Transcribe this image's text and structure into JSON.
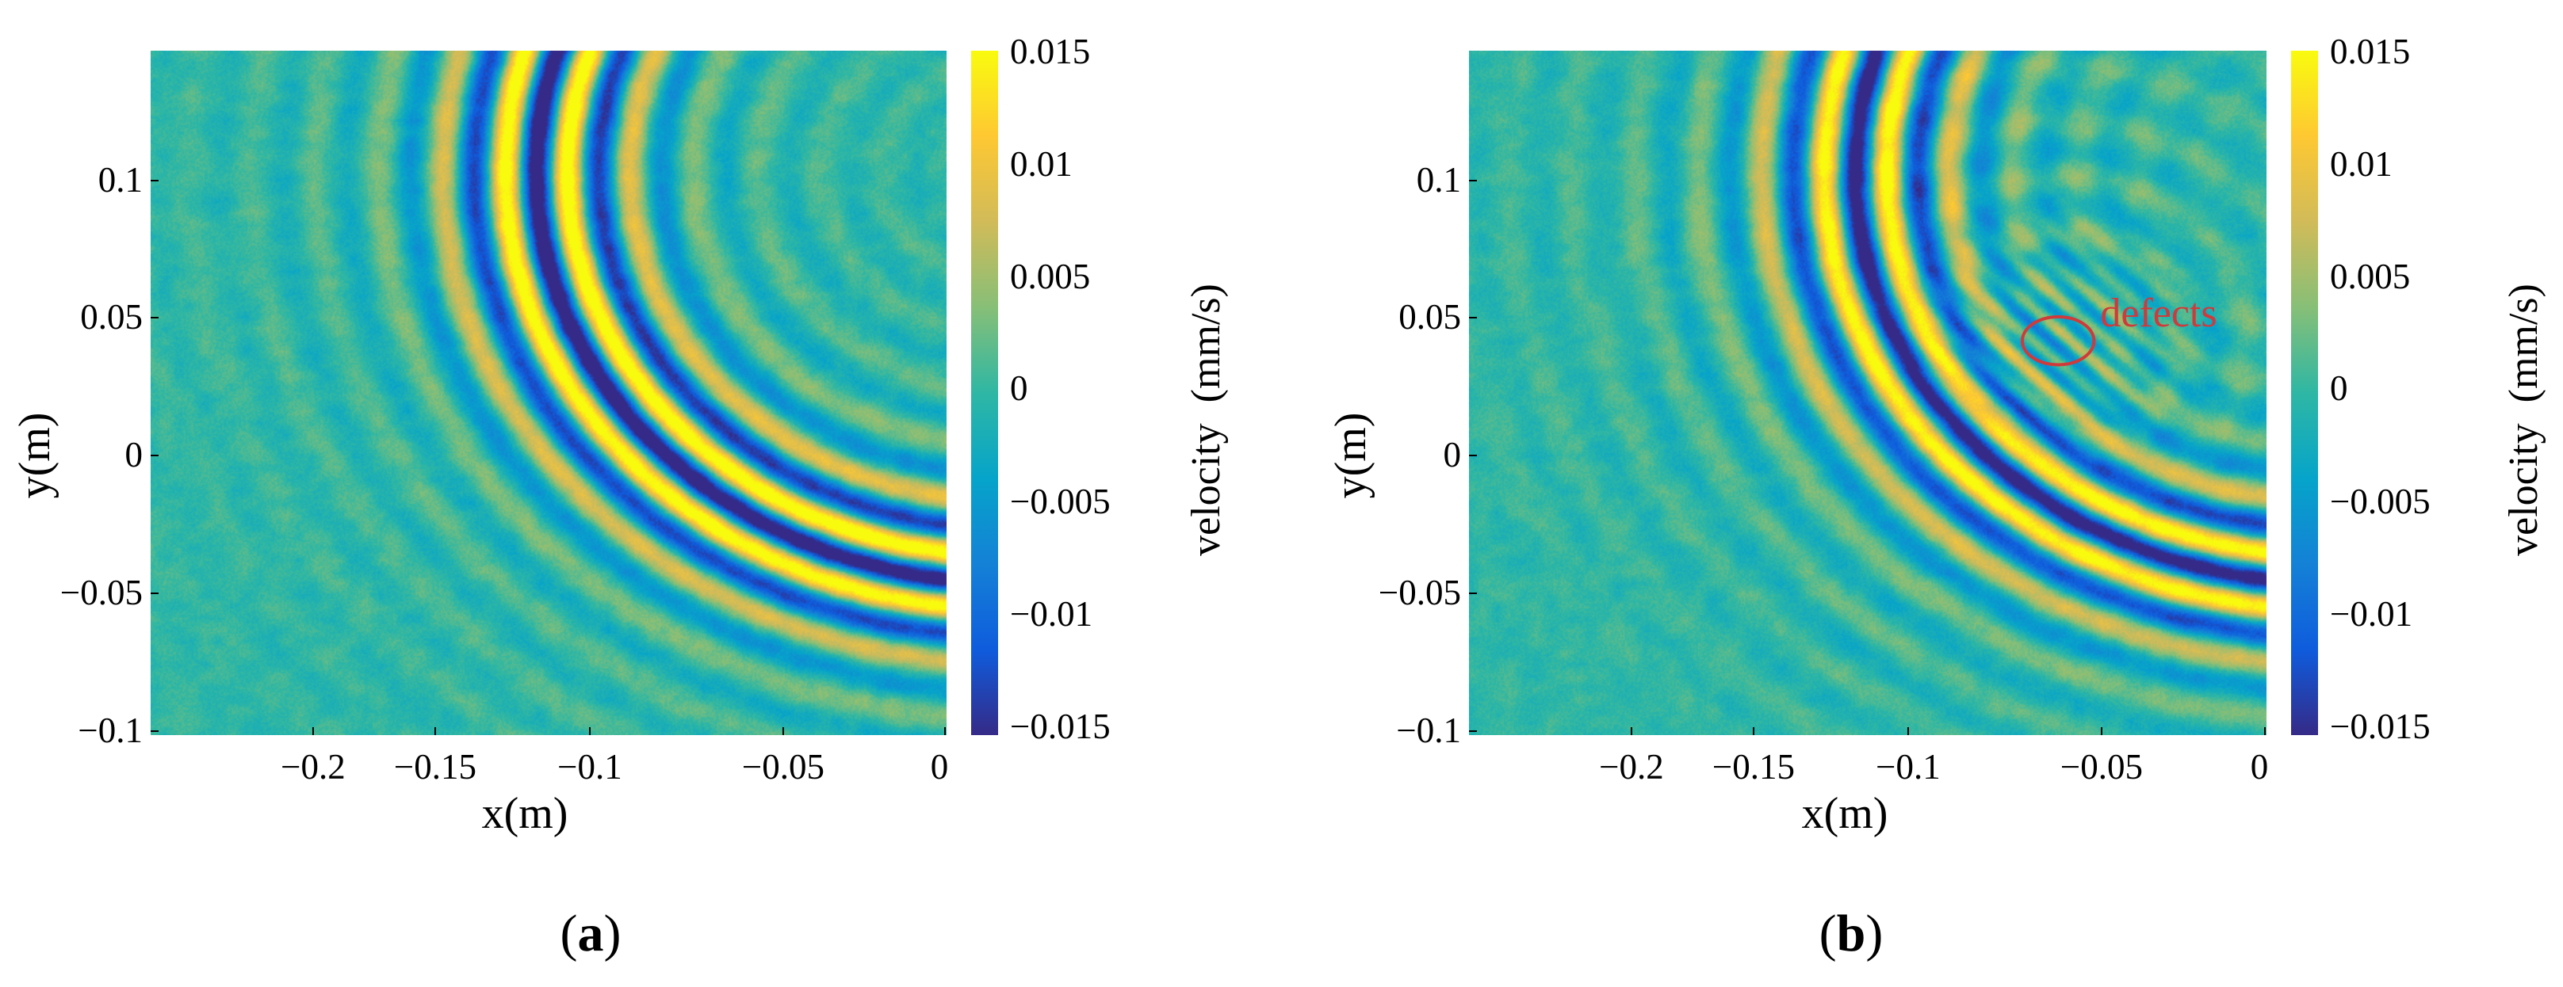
{
  "figure": {
    "panels": [
      {
        "label_open": "(",
        "label_letter": "a",
        "label_close": ")"
      },
      {
        "label_open": "(",
        "label_letter": "b",
        "label_close": ")"
      }
    ]
  },
  "colormap": {
    "name": "parula",
    "stops": [
      "#352a87",
      "#0f5cdd",
      "#1481d6",
      "#06a4ca",
      "#2eb7a4",
      "#87bf77",
      "#d1bb59",
      "#fec832",
      "#f9fb0e"
    ]
  },
  "chart_data": [
    {
      "type": "heatmap",
      "panel": "a",
      "title": "",
      "xlabel": "x(m)",
      "ylabel": "y(m)",
      "xlim": [
        -0.245,
        0.0
      ],
      "ylim": [
        -0.1,
        0.143
      ],
      "xticks": [
        -0.2,
        -0.15,
        -0.1,
        -0.05,
        0
      ],
      "xtick_labels": [
        "−0.2",
        "−0.15",
        "−0.1",
        "−0.05",
        "0"
      ],
      "yticks": [
        0.1,
        0.05,
        0,
        -0.05,
        -0.1
      ],
      "ytick_labels": [
        "0.1",
        "0.05",
        "0",
        "−0.05",
        "−0.1"
      ],
      "colorbar": {
        "label": "velocity  (mm/s)",
        "range": [
          -0.015,
          0.015
        ],
        "ticks": [
          0.015,
          0.01,
          0.005,
          0,
          -0.005,
          -0.01,
          -0.015
        ],
        "tick_labels": [
          "0.015",
          "0.01",
          "0.005",
          "0",
          "−0.005",
          "−0.01",
          "−0.015"
        ]
      },
      "wavefield": {
        "source": [
          0.02,
          0.1
        ],
        "wavelength_m": 0.0195,
        "amplitude_peak_mms": 0.015,
        "envelope_center_radius_m": 0.145,
        "envelope_width_m": 0.03,
        "background_amplitude_mms": 0.0022,
        "defect_scatter": false
      },
      "annotations": []
    },
    {
      "type": "heatmap",
      "panel": "b",
      "title": "",
      "xlabel": "x(m)",
      "ylabel": "y(m)",
      "xlim": [
        -0.245,
        0.0
      ],
      "ylim": [
        -0.1,
        0.143
      ],
      "xticks": [
        -0.2,
        -0.15,
        -0.1,
        -0.05,
        0
      ],
      "xtick_labels": [
        "−0.2",
        "−0.15",
        "−0.1",
        "−0.05",
        "0"
      ],
      "yticks": [
        0.1,
        0.05,
        0,
        -0.05,
        -0.1
      ],
      "ytick_labels": [
        "0.1",
        "0.05",
        "0",
        "−0.05",
        "−0.1"
      ],
      "colorbar": {
        "label": "velocity  (mm/s)",
        "range": [
          -0.015,
          0.015
        ],
        "ticks": [
          0.015,
          0.01,
          0.005,
          0,
          -0.005,
          -0.01,
          -0.015
        ],
        "tick_labels": [
          "0.015",
          "0.01",
          "0.005",
          "0",
          "−0.005",
          "−0.01",
          "−0.015"
        ]
      },
      "wavefield": {
        "source": [
          0.02,
          0.1
        ],
        "wavelength_m": 0.0195,
        "amplitude_peak_mms": 0.014,
        "envelope_center_radius_m": 0.145,
        "envelope_width_m": 0.03,
        "background_amplitude_mms": 0.0022,
        "defect_scatter": true,
        "defect_center": [
          -0.064,
          0.04
        ],
        "defect_radius_m": 0.011
      },
      "annotations": [
        {
          "text": "defects",
          "color": "#d03a3a",
          "x": -0.064,
          "y": 0.04,
          "rx_m": 0.011,
          "ry_m": 0.0085
        }
      ]
    }
  ]
}
